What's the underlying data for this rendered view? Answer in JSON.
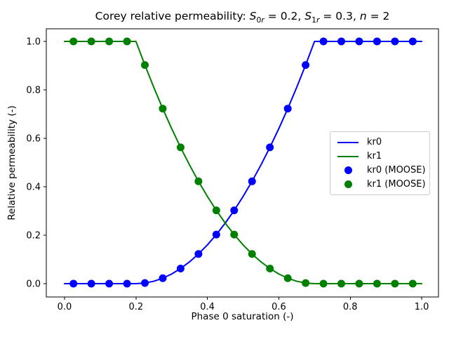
{
  "title": {
    "prefix": "Corey relative permeability: ",
    "var1": "S",
    "sub1_num": "0",
    "sub1_letter": "r",
    "eq1": " = 0.2, ",
    "var2": "S",
    "sub2_num": "1",
    "sub2_letter": "r",
    "eq2": " = 0.3, ",
    "var3": "n",
    "eq3": " = 2"
  },
  "legend": {
    "position": "center right",
    "entries": [
      {
        "label": "kr0",
        "glyph": "line",
        "color": "#0000ff"
      },
      {
        "label": "kr1",
        "glyph": "line",
        "color": "#008000"
      },
      {
        "label": "kr0 (MOOSE)",
        "glyph": "marker",
        "color": "#0000ff"
      },
      {
        "label": "kr1 (MOOSE)",
        "glyph": "marker",
        "color": "#008000"
      }
    ]
  },
  "chart_data": {
    "type": "line",
    "title": "Corey relative permeability: S_0r = 0.2, S_1r = 0.3, n = 2",
    "xlabel": "Phase 0 saturation (-)",
    "ylabel": "Relative permeability (-)",
    "xlim": [
      -0.051,
      1.047
    ],
    "ylim": [
      -0.055,
      1.052
    ],
    "x_ticks": [
      0,
      0.2,
      0.4,
      0.6,
      0.8,
      1.0
    ],
    "x_tick_labels": [
      "0.0",
      "0.2",
      "0.4",
      "0.6",
      "0.8",
      "1.0"
    ],
    "y_ticks": [
      0,
      0.2,
      0.4,
      0.6,
      0.8,
      1.0
    ],
    "y_tick_labels": [
      "0.0",
      "0.2",
      "0.4",
      "0.6",
      "0.8",
      "1.0"
    ],
    "grid": false,
    "legend_position": "center right",
    "series": [
      {
        "name": "kr0",
        "type": "line",
        "color": "#0000ff",
        "x": [
          0,
          0.025,
          0.05,
          0.075,
          0.1,
          0.125,
          0.15,
          0.175,
          0.2,
          0.225,
          0.25,
          0.275,
          0.3,
          0.325,
          0.35,
          0.375,
          0.4,
          0.425,
          0.45,
          0.475,
          0.5,
          0.525,
          0.55,
          0.575,
          0.6,
          0.625,
          0.65,
          0.675,
          0.7,
          0.725,
          0.75,
          0.775,
          0.8,
          0.825,
          0.85,
          0.875,
          0.9,
          0.925,
          0.95,
          0.975,
          1
        ],
        "y": [
          0,
          0,
          0,
          0,
          0,
          0,
          0,
          0,
          0,
          0.0025,
          0.01,
          0.0225,
          0.04,
          0.0625,
          0.09,
          0.1225,
          0.16,
          0.2025,
          0.25,
          0.3025,
          0.36,
          0.4225,
          0.49,
          0.5625,
          0.64,
          0.7225,
          0.81,
          0.9025,
          1,
          1,
          1,
          1,
          1,
          1,
          1,
          1,
          1,
          1,
          1,
          1,
          1
        ]
      },
      {
        "name": "kr1",
        "type": "line",
        "color": "#008000",
        "x": [
          0,
          0.025,
          0.05,
          0.075,
          0.1,
          0.125,
          0.15,
          0.175,
          0.2,
          0.225,
          0.25,
          0.275,
          0.3,
          0.325,
          0.35,
          0.375,
          0.4,
          0.425,
          0.45,
          0.475,
          0.5,
          0.525,
          0.55,
          0.575,
          0.6,
          0.625,
          0.65,
          0.675,
          0.7,
          0.725,
          0.75,
          0.775,
          0.8,
          0.825,
          0.85,
          0.875,
          0.9,
          0.925,
          0.95,
          0.975,
          1
        ],
        "y": [
          1,
          1,
          1,
          1,
          1,
          1,
          1,
          1,
          1,
          0.9025,
          0.81,
          0.7225,
          0.64,
          0.5625,
          0.49,
          0.4225,
          0.36,
          0.3025,
          0.25,
          0.2025,
          0.16,
          0.1225,
          0.09,
          0.0625,
          0.04,
          0.0225,
          0.01,
          0.0025,
          0,
          0,
          0,
          0,
          0,
          0,
          0,
          0,
          0,
          0,
          0,
          0,
          0
        ]
      },
      {
        "name": "kr0 (MOOSE)",
        "type": "scatter",
        "color": "#0000ff",
        "x": [
          0.025,
          0.075,
          0.125,
          0.175,
          0.225,
          0.275,
          0.325,
          0.375,
          0.425,
          0.475,
          0.525,
          0.575,
          0.625,
          0.675,
          0.725,
          0.775,
          0.825,
          0.875,
          0.925,
          0.975
        ],
        "y": [
          0,
          0,
          0,
          0,
          0.0025,
          0.0225,
          0.0625,
          0.1225,
          0.2025,
          0.3025,
          0.4225,
          0.5625,
          0.7225,
          0.9025,
          1,
          1,
          1,
          1,
          1,
          1
        ]
      },
      {
        "name": "kr1 (MOOSE)",
        "type": "scatter",
        "color": "#008000",
        "x": [
          0.025,
          0.075,
          0.125,
          0.175,
          0.225,
          0.275,
          0.325,
          0.375,
          0.425,
          0.475,
          0.525,
          0.575,
          0.625,
          0.675,
          0.725,
          0.775,
          0.825,
          0.875,
          0.925,
          0.975
        ],
        "y": [
          1,
          1,
          1,
          1,
          0.9025,
          0.7225,
          0.5625,
          0.4225,
          0.3025,
          0.2025,
          0.1225,
          0.0625,
          0.0225,
          0.0025,
          0,
          0,
          0,
          0,
          0,
          0
        ]
      }
    ]
  }
}
